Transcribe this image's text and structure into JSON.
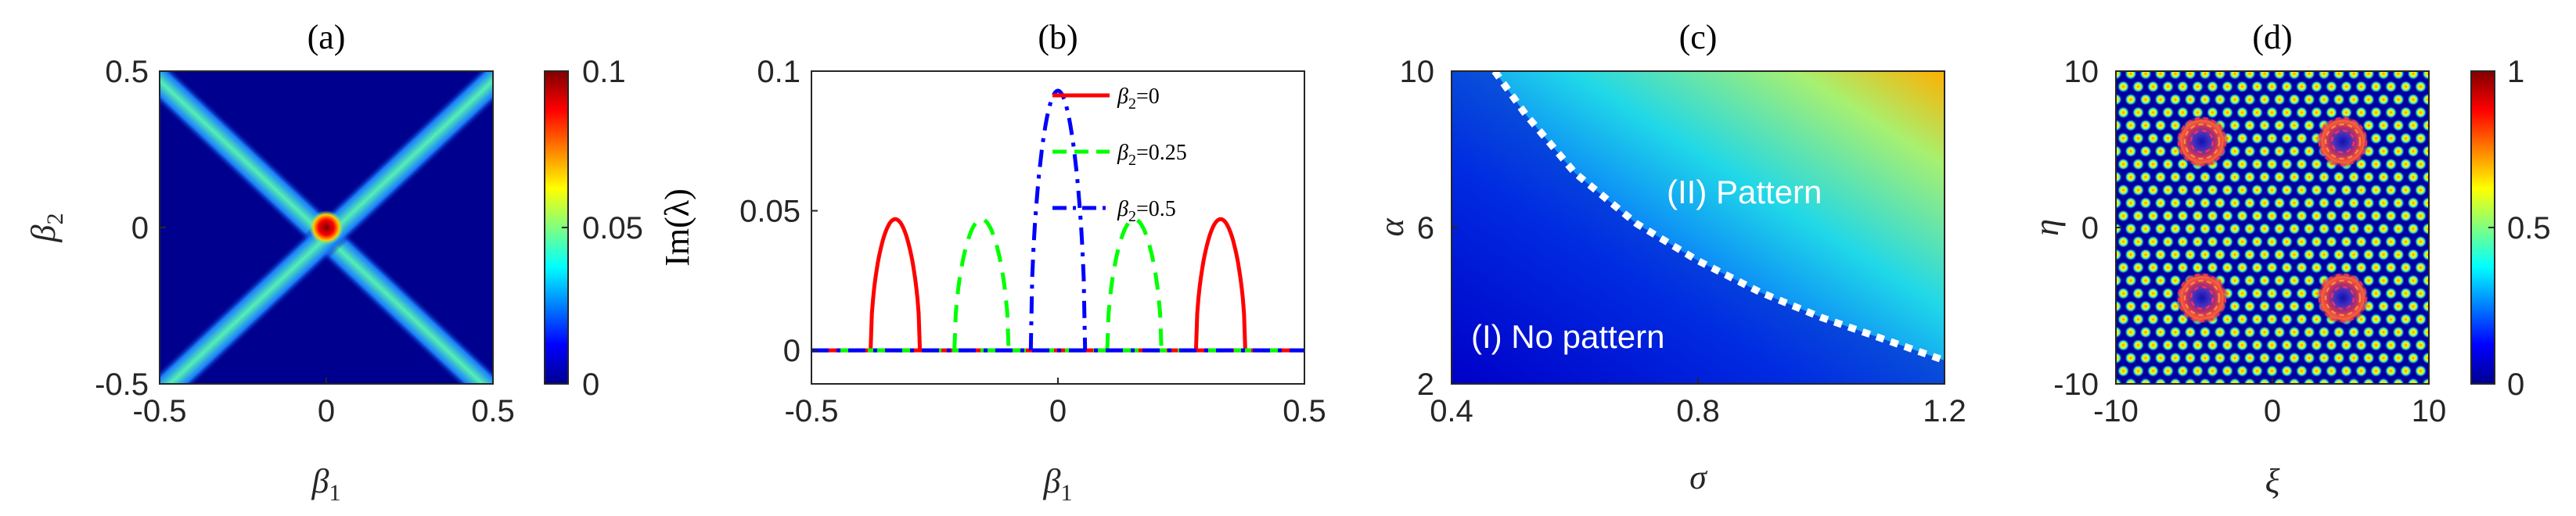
{
  "colors": {
    "jet_dark_blue": "#00008f",
    "line_red": "#ff0000",
    "line_green": "#00ff00",
    "line_blue": "#0000ff",
    "boundary": "#ffffff",
    "axis": "#262626"
  },
  "chart_data": [
    {
      "id": "a",
      "type": "heatmap",
      "title": "(a)",
      "xlabel": "β1",
      "ylabel": "β2",
      "xlim": [
        -0.5,
        0.5
      ],
      "ylim": [
        -0.5,
        0.5
      ],
      "x_ticks": [
        -0.5,
        0,
        0.5
      ],
      "x_tick_labels": [
        "-0.5",
        "0",
        "0.5"
      ],
      "y_ticks": [
        -0.5,
        0,
        0.5
      ],
      "y_tick_labels": [
        "-0.5",
        "0",
        "0.5"
      ],
      "description_values": {
        "band_peak": 0.05,
        "center_peak": 0.1
      },
      "colorbar": {
        "min": 0,
        "max": 0.1,
        "ticks": [
          0,
          0.05,
          0.1
        ],
        "tick_labels": [
          "0",
          "0.05",
          "0.1"
        ],
        "colormap": "jet"
      }
    },
    {
      "id": "b",
      "type": "line",
      "title": "(b)",
      "xlabel": "β1",
      "ylabel": "Im(λ)",
      "xlim": [
        -0.5,
        0.5
      ],
      "ylim": [
        -0.012,
        0.1
      ],
      "x_ticks": [
        -0.5,
        0,
        0.5
      ],
      "x_tick_labels": [
        "-0.5",
        "0",
        "0.5"
      ],
      "y_ticks": [
        0,
        0.05,
        0.1
      ],
      "y_tick_labels": [
        "0",
        "0.05",
        "0.1"
      ],
      "legend_position": "top-right",
      "series": [
        {
          "name": "β2=0",
          "legend_label": "β2=0",
          "style": "solid",
          "color": "#ff0000",
          "lobes": [
            {
              "start": -0.38,
              "end": -0.28,
              "peak": 0.047
            },
            {
              "start": 0.28,
              "end": 0.38,
              "peak": 0.047
            }
          ]
        },
        {
          "name": "β2=0.25",
          "legend_label": "β2=0.25",
          "style": "dashed",
          "color": "#00ff00",
          "lobes": [
            {
              "start": -0.21,
              "end": -0.1,
              "peak": 0.047
            },
            {
              "start": 0.1,
              "end": 0.21,
              "peak": 0.047
            }
          ]
        },
        {
          "name": "β2=0.5",
          "legend_label": "β2=0.5",
          "style": "dashdot",
          "color": "#0000ff",
          "lobes": [
            {
              "start": -0.055,
              "end": 0.055,
              "peak": 0.093
            }
          ]
        }
      ]
    },
    {
      "id": "c",
      "type": "heatmap",
      "title": "(c)",
      "xlabel": "σ",
      "ylabel": "α",
      "xlim": [
        0.4,
        1.2
      ],
      "ylim": [
        2,
        10
      ],
      "x_ticks": [
        0.4,
        0.8,
        1.2
      ],
      "x_tick_labels": [
        "0.4",
        "0.8",
        "1.2"
      ],
      "y_ticks": [
        2,
        6,
        10
      ],
      "y_tick_labels": [
        "2",
        "6",
        "10"
      ],
      "boundary_points": [
        [
          0.47,
          10
        ],
        [
          0.52,
          8.9
        ],
        [
          0.6,
          7.4
        ],
        [
          0.7,
          6.1
        ],
        [
          0.8,
          5.15
        ],
        [
          0.9,
          4.35
        ],
        [
          1.0,
          3.7
        ],
        [
          1.1,
          3.15
        ],
        [
          1.2,
          2.6
        ]
      ],
      "regions": {
        "below": "(I) No pattern",
        "above": "(II) Pattern"
      }
    },
    {
      "id": "d",
      "type": "heatmap",
      "title": "(d)",
      "xlabel": "ξ",
      "ylabel": "η",
      "xlim": [
        -10,
        10
      ],
      "ylim": [
        -10,
        10
      ],
      "x_ticks": [
        -10,
        0,
        10
      ],
      "x_tick_labels": [
        "-10",
        "0",
        "10"
      ],
      "y_ticks": [
        -10,
        0,
        10
      ],
      "y_tick_labels": [
        "-10",
        "0",
        "10"
      ],
      "vortex_centers": [
        [
          -4.5,
          5.5
        ],
        [
          4.5,
          5.5
        ],
        [
          -4.5,
          -4.5
        ],
        [
          4.5,
          -4.5
        ]
      ],
      "colorbar": {
        "min": 0,
        "max": 1,
        "ticks": [
          0,
          0.5,
          1
        ],
        "tick_labels": [
          "0",
          "0.5",
          "1"
        ],
        "colormap": "jet"
      }
    }
  ]
}
